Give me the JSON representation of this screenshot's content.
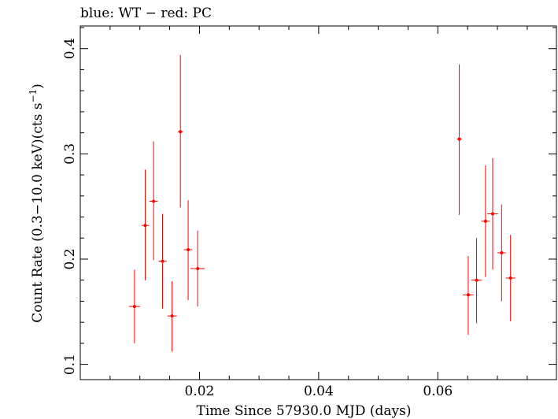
{
  "chart_data": {
    "type": "scatter",
    "title": "blue: WT − red: PC",
    "xlabel": "Time Since 57930.0 MJD (days)",
    "ylabel_main": "Count Rate (0.3−10.0 keV)(cts s",
    "ylabel_sup": "−1",
    "ylabel_end": ")",
    "xlim": [
      0.0,
      0.0799
    ],
    "ylim": [
      0.0855,
      0.4215
    ],
    "x_ticks_major": [
      0.02,
      0.04,
      0.06
    ],
    "x_tick_labels": [
      "0.02",
      "0.04",
      "0.06"
    ],
    "x_ticks_minor": [
      0.005,
      0.01,
      0.015,
      0.025,
      0.03,
      0.035,
      0.045,
      0.05,
      0.055,
      0.065,
      0.07,
      0.075
    ],
    "y_ticks_major": [
      0.1,
      0.2,
      0.3,
      0.4
    ],
    "y_tick_labels": [
      "0.1",
      "0.2",
      "0.3",
      "0.4"
    ],
    "y_ticks_minor": [
      0.12,
      0.14,
      0.16,
      0.18,
      0.22,
      0.24,
      0.26,
      0.28,
      0.32,
      0.34,
      0.36,
      0.38,
      0.42
    ],
    "grid": false,
    "series": [
      {
        "color": "#ff0000",
        "points": [
          {
            "x": 0.0091,
            "y": 0.155,
            "xerr": 0.00095,
            "ylo": 0.12,
            "yhi": 0.19
          },
          {
            "x": 0.0109,
            "y": 0.232,
            "xerr": 0.0006,
            "ylo": 0.18,
            "yhi": 0.285
          },
          {
            "x": 0.0123,
            "y": 0.255,
            "xerr": 0.0007,
            "ylo": 0.199,
            "yhi": 0.312
          },
          {
            "x": 0.0138,
            "y": 0.198,
            "xerr": 0.0007,
            "ylo": 0.153,
            "yhi": 0.243
          },
          {
            "x": 0.0154,
            "y": 0.146,
            "xerr": 0.0008,
            "ylo": 0.112,
            "yhi": 0.179
          },
          {
            "x": 0.0168,
            "y": 0.321,
            "xerr": 0.0004,
            "ylo": 0.249,
            "yhi": 0.394
          },
          {
            "x": 0.0181,
            "y": 0.209,
            "xerr": 0.0007,
            "ylo": 0.161,
            "yhi": 0.256
          },
          {
            "x": 0.0197,
            "y": 0.191,
            "xerr": 0.0012,
            "ylo": 0.155,
            "yhi": 0.227
          },
          {
            "x": 0.0636,
            "y": 0.314,
            "xerr": 0.0004,
            "ylo": 0.242,
            "yhi": 0.385
          },
          {
            "x": 0.0651,
            "y": 0.166,
            "xerr": 0.0009,
            "ylo": 0.128,
            "yhi": 0.203
          },
          {
            "x": 0.0665,
            "y": 0.18,
            "xerr": 0.0009,
            "ylo": 0.139,
            "yhi": 0.22
          },
          {
            "x": 0.068,
            "y": 0.236,
            "xerr": 0.0007,
            "ylo": 0.183,
            "yhi": 0.289
          },
          {
            "x": 0.0692,
            "y": 0.243,
            "xerr": 0.0009,
            "ylo": 0.19,
            "yhi": 0.296
          },
          {
            "x": 0.0707,
            "y": 0.206,
            "xerr": 0.0007,
            "ylo": 0.16,
            "yhi": 0.252
          },
          {
            "x": 0.0722,
            "y": 0.182,
            "xerr": 0.0008,
            "ylo": 0.141,
            "yhi": 0.223
          }
        ]
      }
    ]
  }
}
